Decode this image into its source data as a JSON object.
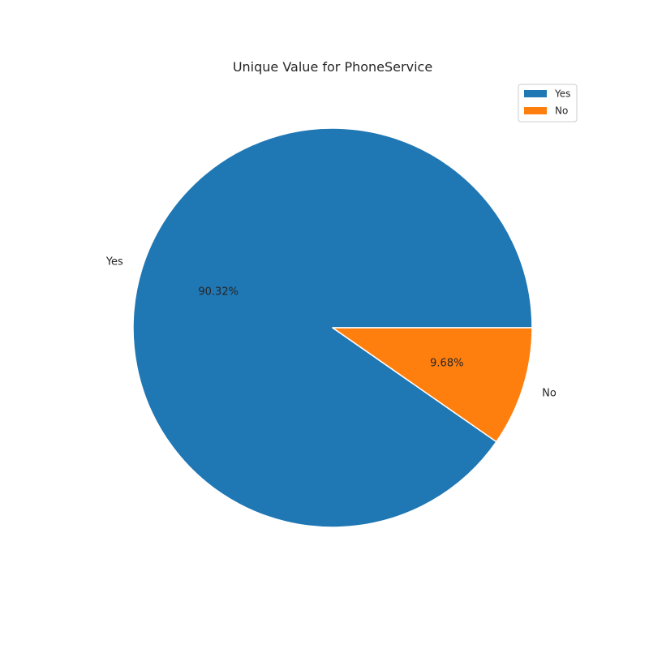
{
  "chart_data": {
    "type": "pie",
    "title": "Unique Value for PhoneService",
    "categories": [
      "Yes",
      "No"
    ],
    "values": [
      90.32,
      9.68
    ],
    "percent_labels": [
      "90.32%",
      "9.68%"
    ],
    "colors": [
      "#1f77b4",
      "#ff7f0e"
    ],
    "start_angle_deg": 0,
    "direction": "counterclockwise",
    "legend": {
      "placement": "top-right",
      "entries": [
        "Yes",
        "No"
      ]
    }
  }
}
